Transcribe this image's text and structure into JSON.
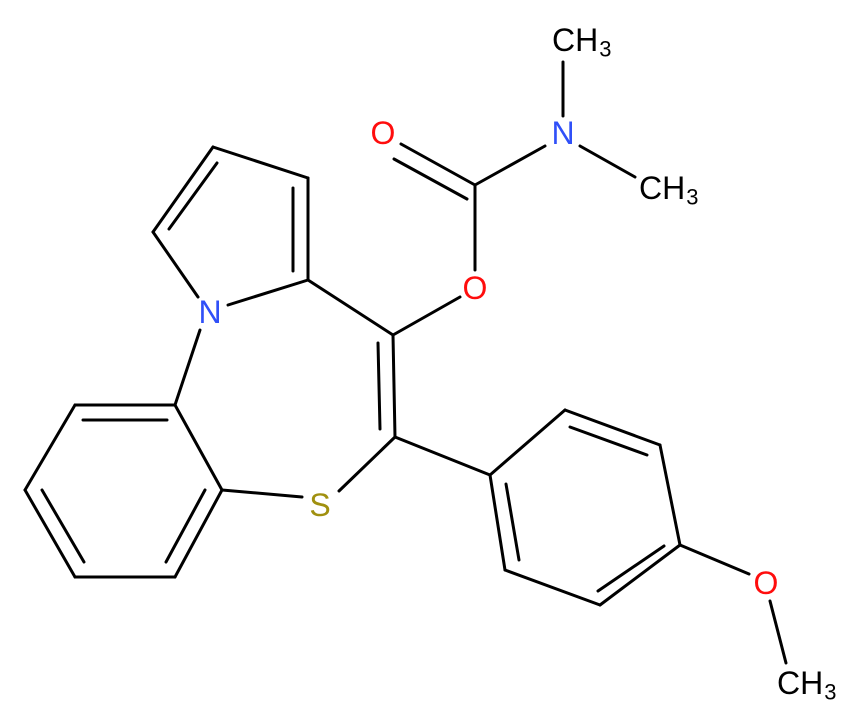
{
  "atoms": [
    {
      "label": "O"
    },
    {
      "label": "N"
    },
    {
      "label": "CH",
      "subscript": "3"
    },
    {
      "label": "CH",
      "subscript": "3"
    },
    {
      "label": "O"
    },
    {
      "label": "N"
    },
    {
      "label": "S"
    },
    {
      "label": "O"
    },
    {
      "label": "CH",
      "subscript": "3"
    }
  ]
}
